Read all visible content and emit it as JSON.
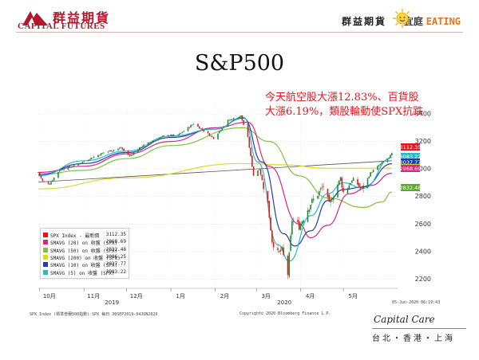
{
  "header": {
    "company_cn": "群益期貨",
    "company_en": "CAPITAL FUTURES",
    "slogan_1": "群益期貨",
    "slogan_2": "宜庭",
    "slogan_3": "EATING"
  },
  "page_title": "S&P500",
  "annotation": "今天航空股大漲12.83%、百貨股大漲6.19%，類股輪動使SPX抗跌",
  "footer": {
    "left": "SPX Index (標準普爾500指數) SPX  每日 30SEP2019-04JUN2020",
    "copyright": "Copyright© 2020 Bloomberg Finance L.P.",
    "date": "05-Jun-2020 06:19:43"
  },
  "brand": {
    "logo": "Capital Care",
    "cities": "台北・香港・上海"
  },
  "chart_data": {
    "type": "candlestick",
    "title": "",
    "x_tick_labels": [
      "10月",
      "11月",
      "12月",
      "1月",
      "2月",
      "3月",
      "4月",
      "5月"
    ],
    "year_labels": [
      "2019",
      "2020"
    ],
    "y_ticks": [
      2200,
      2400,
      2600,
      2800,
      3000,
      3200,
      3400
    ],
    "ylim": [
      2150,
      3470
    ],
    "legend": [
      {
        "name": "SPX Index - 最新價",
        "value": "3112.35",
        "color": "#e8141d"
      },
      {
        "name": "SMAVG (20)  on 收盤 (SPX)",
        "value": "2968.69",
        "color": "#d6287f"
      },
      {
        "name": "SMAVG (50)  on 收盤 (SPX)",
        "value": "2832.48",
        "color": "#7fc241"
      },
      {
        "name": "SMAVG (200) on 收盤 (SPX)",
        "value": "3006.25",
        "color": "#d8d830"
      },
      {
        "name": "SMAVG (10)  on 收盤 (SPX)",
        "value": "3037.77",
        "color": "#1f3fa8"
      },
      {
        "name": "SMAVG (5)   on 收盤 (SPX)",
        "value": "3083.22",
        "color": "#2bb7c9"
      }
    ],
    "last_value_tags": [
      {
        "label": "3112.35",
        "value": 3112.35,
        "color": "#e8141d"
      },
      {
        "label": "3083.22",
        "value": 3083.22,
        "color": "#2bb7c9"
      },
      {
        "label": "3037.77",
        "value": 3037.77,
        "color": "#1f3fa8"
      },
      {
        "label": "3006.25",
        "value": 3006.25,
        "color": "#c8c81e"
      },
      {
        "label": "2968.69",
        "value": 2968.69,
        "color": "#d6287f"
      },
      {
        "label": "2832.48",
        "value": 2832.48,
        "color": "#5fa82b"
      }
    ],
    "trendline": {
      "start": {
        "date": "2019-09-30",
        "value": 2905
      },
      "end": {
        "date": "2020-06-04",
        "value": 3060
      },
      "color": "#555555"
    },
    "price_path": [
      [
        "2019-09-30",
        2977
      ],
      [
        "2019-10-03",
        2910
      ],
      [
        "2019-10-08",
        2893
      ],
      [
        "2019-10-15",
        2995
      ],
      [
        "2019-10-25",
        3023
      ],
      [
        "2019-11-05",
        3075
      ],
      [
        "2019-11-15",
        3120
      ],
      [
        "2019-11-27",
        3153
      ],
      [
        "2019-12-03",
        3093
      ],
      [
        "2019-12-12",
        3168
      ],
      [
        "2019-12-27",
        3240
      ],
      [
        "2020-01-06",
        3246
      ],
      [
        "2020-01-17",
        3330
      ],
      [
        "2020-01-31",
        3225
      ],
      [
        "2020-02-10",
        3352
      ],
      [
        "2020-02-19",
        3386
      ],
      [
        "2020-02-24",
        3225
      ],
      [
        "2020-02-28",
        2954
      ],
      [
        "2020-03-03",
        3003
      ],
      [
        "2020-03-09",
        2746
      ],
      [
        "2020-03-12",
        2480
      ],
      [
        "2020-03-16",
        2386
      ],
      [
        "2020-03-19",
        2409
      ],
      [
        "2020-03-23",
        2237
      ],
      [
        "2020-03-26",
        2630
      ],
      [
        "2020-03-31",
        2584
      ],
      [
        "2020-04-08",
        2749
      ],
      [
        "2020-04-17",
        2875
      ],
      [
        "2020-04-21",
        2737
      ],
      [
        "2020-04-29",
        2939
      ],
      [
        "2020-05-01",
        2830
      ],
      [
        "2020-05-08",
        2929
      ],
      [
        "2020-05-14",
        2852
      ],
      [
        "2020-05-20",
        2971
      ],
      [
        "2020-05-27",
        3036
      ],
      [
        "2020-06-02",
        3080
      ],
      [
        "2020-06-04",
        3112
      ]
    ],
    "series": [
      {
        "name": "SMAVG (200) on 收盤 (SPX)",
        "color": "#d8d830",
        "points": [
          [
            "2019-09-30",
            2855
          ],
          [
            "2019-12-01",
            2935
          ],
          [
            "2020-02-20",
            3040
          ],
          [
            "2020-03-20",
            3030
          ],
          [
            "2020-04-20",
            3005
          ],
          [
            "2020-06-04",
            3006
          ]
        ]
      },
      {
        "name": "SMAVG (50) on 收盤 (SPX)",
        "color": "#7fc241",
        "points": [
          [
            "2019-09-30",
            2960
          ],
          [
            "2019-11-01",
            2990
          ],
          [
            "2019-12-01",
            3075
          ],
          [
            "2020-01-01",
            3170
          ],
          [
            "2020-02-20",
            3300
          ],
          [
            "2020-03-10",
            3200
          ],
          [
            "2020-03-31",
            2950
          ],
          [
            "2020-04-20",
            2790
          ],
          [
            "2020-05-15",
            2720
          ],
          [
            "2020-05-28",
            2760
          ],
          [
            "2020-06-04",
            2832
          ]
        ]
      },
      {
        "name": "SMAVG (20) on 收盤 (SPX)",
        "color": "#d6287f",
        "points": [
          [
            "2019-09-30",
            2975
          ],
          [
            "2019-11-01",
            3020
          ],
          [
            "2019-12-01",
            3110
          ],
          [
            "2020-01-01",
            3200
          ],
          [
            "2020-02-01",
            3300
          ],
          [
            "2020-02-24",
            3340
          ],
          [
            "2020-03-10",
            3020
          ],
          [
            "2020-03-31",
            2600
          ],
          [
            "2020-04-08",
            2500
          ],
          [
            "2020-04-20",
            2590
          ],
          [
            "2020-05-05",
            2820
          ],
          [
            "2020-05-20",
            2880
          ],
          [
            "2020-06-04",
            2969
          ]
        ]
      },
      {
        "name": "SMAVG (10) on 收盤 (SPX)",
        "color": "#1f3fa8",
        "points": [
          [
            "2019-09-30",
            2960
          ],
          [
            "2019-11-01",
            3040
          ],
          [
            "2019-12-01",
            3120
          ],
          [
            "2020-01-01",
            3230
          ],
          [
            "2020-02-01",
            3290
          ],
          [
            "2020-02-21",
            3370
          ],
          [
            "2020-03-05",
            3050
          ],
          [
            "2020-03-20",
            2530
          ],
          [
            "2020-03-28",
            2440
          ],
          [
            "2020-04-08",
            2550
          ],
          [
            "2020-04-20",
            2770
          ],
          [
            "2020-05-01",
            2850
          ],
          [
            "2020-05-15",
            2870
          ],
          [
            "2020-06-04",
            3038
          ]
        ]
      },
      {
        "name": "SMAVG (5) on 收盤 (SPX)",
        "color": "#2bb7c9",
        "points": [
          [
            "2019-09-30",
            2950
          ],
          [
            "2019-11-01",
            3060
          ],
          [
            "2019-12-01",
            3130
          ],
          [
            "2020-01-01",
            3240
          ],
          [
            "2020-02-01",
            3290
          ],
          [
            "2020-02-21",
            3375
          ],
          [
            "2020-03-02",
            3050
          ],
          [
            "2020-03-16",
            2450
          ],
          [
            "2020-03-24",
            2330
          ],
          [
            "2020-04-08",
            2660
          ],
          [
            "2020-04-20",
            2820
          ],
          [
            "2020-05-01",
            2900
          ],
          [
            "2020-05-15",
            2860
          ],
          [
            "2020-06-04",
            3083
          ]
        ]
      }
    ]
  }
}
